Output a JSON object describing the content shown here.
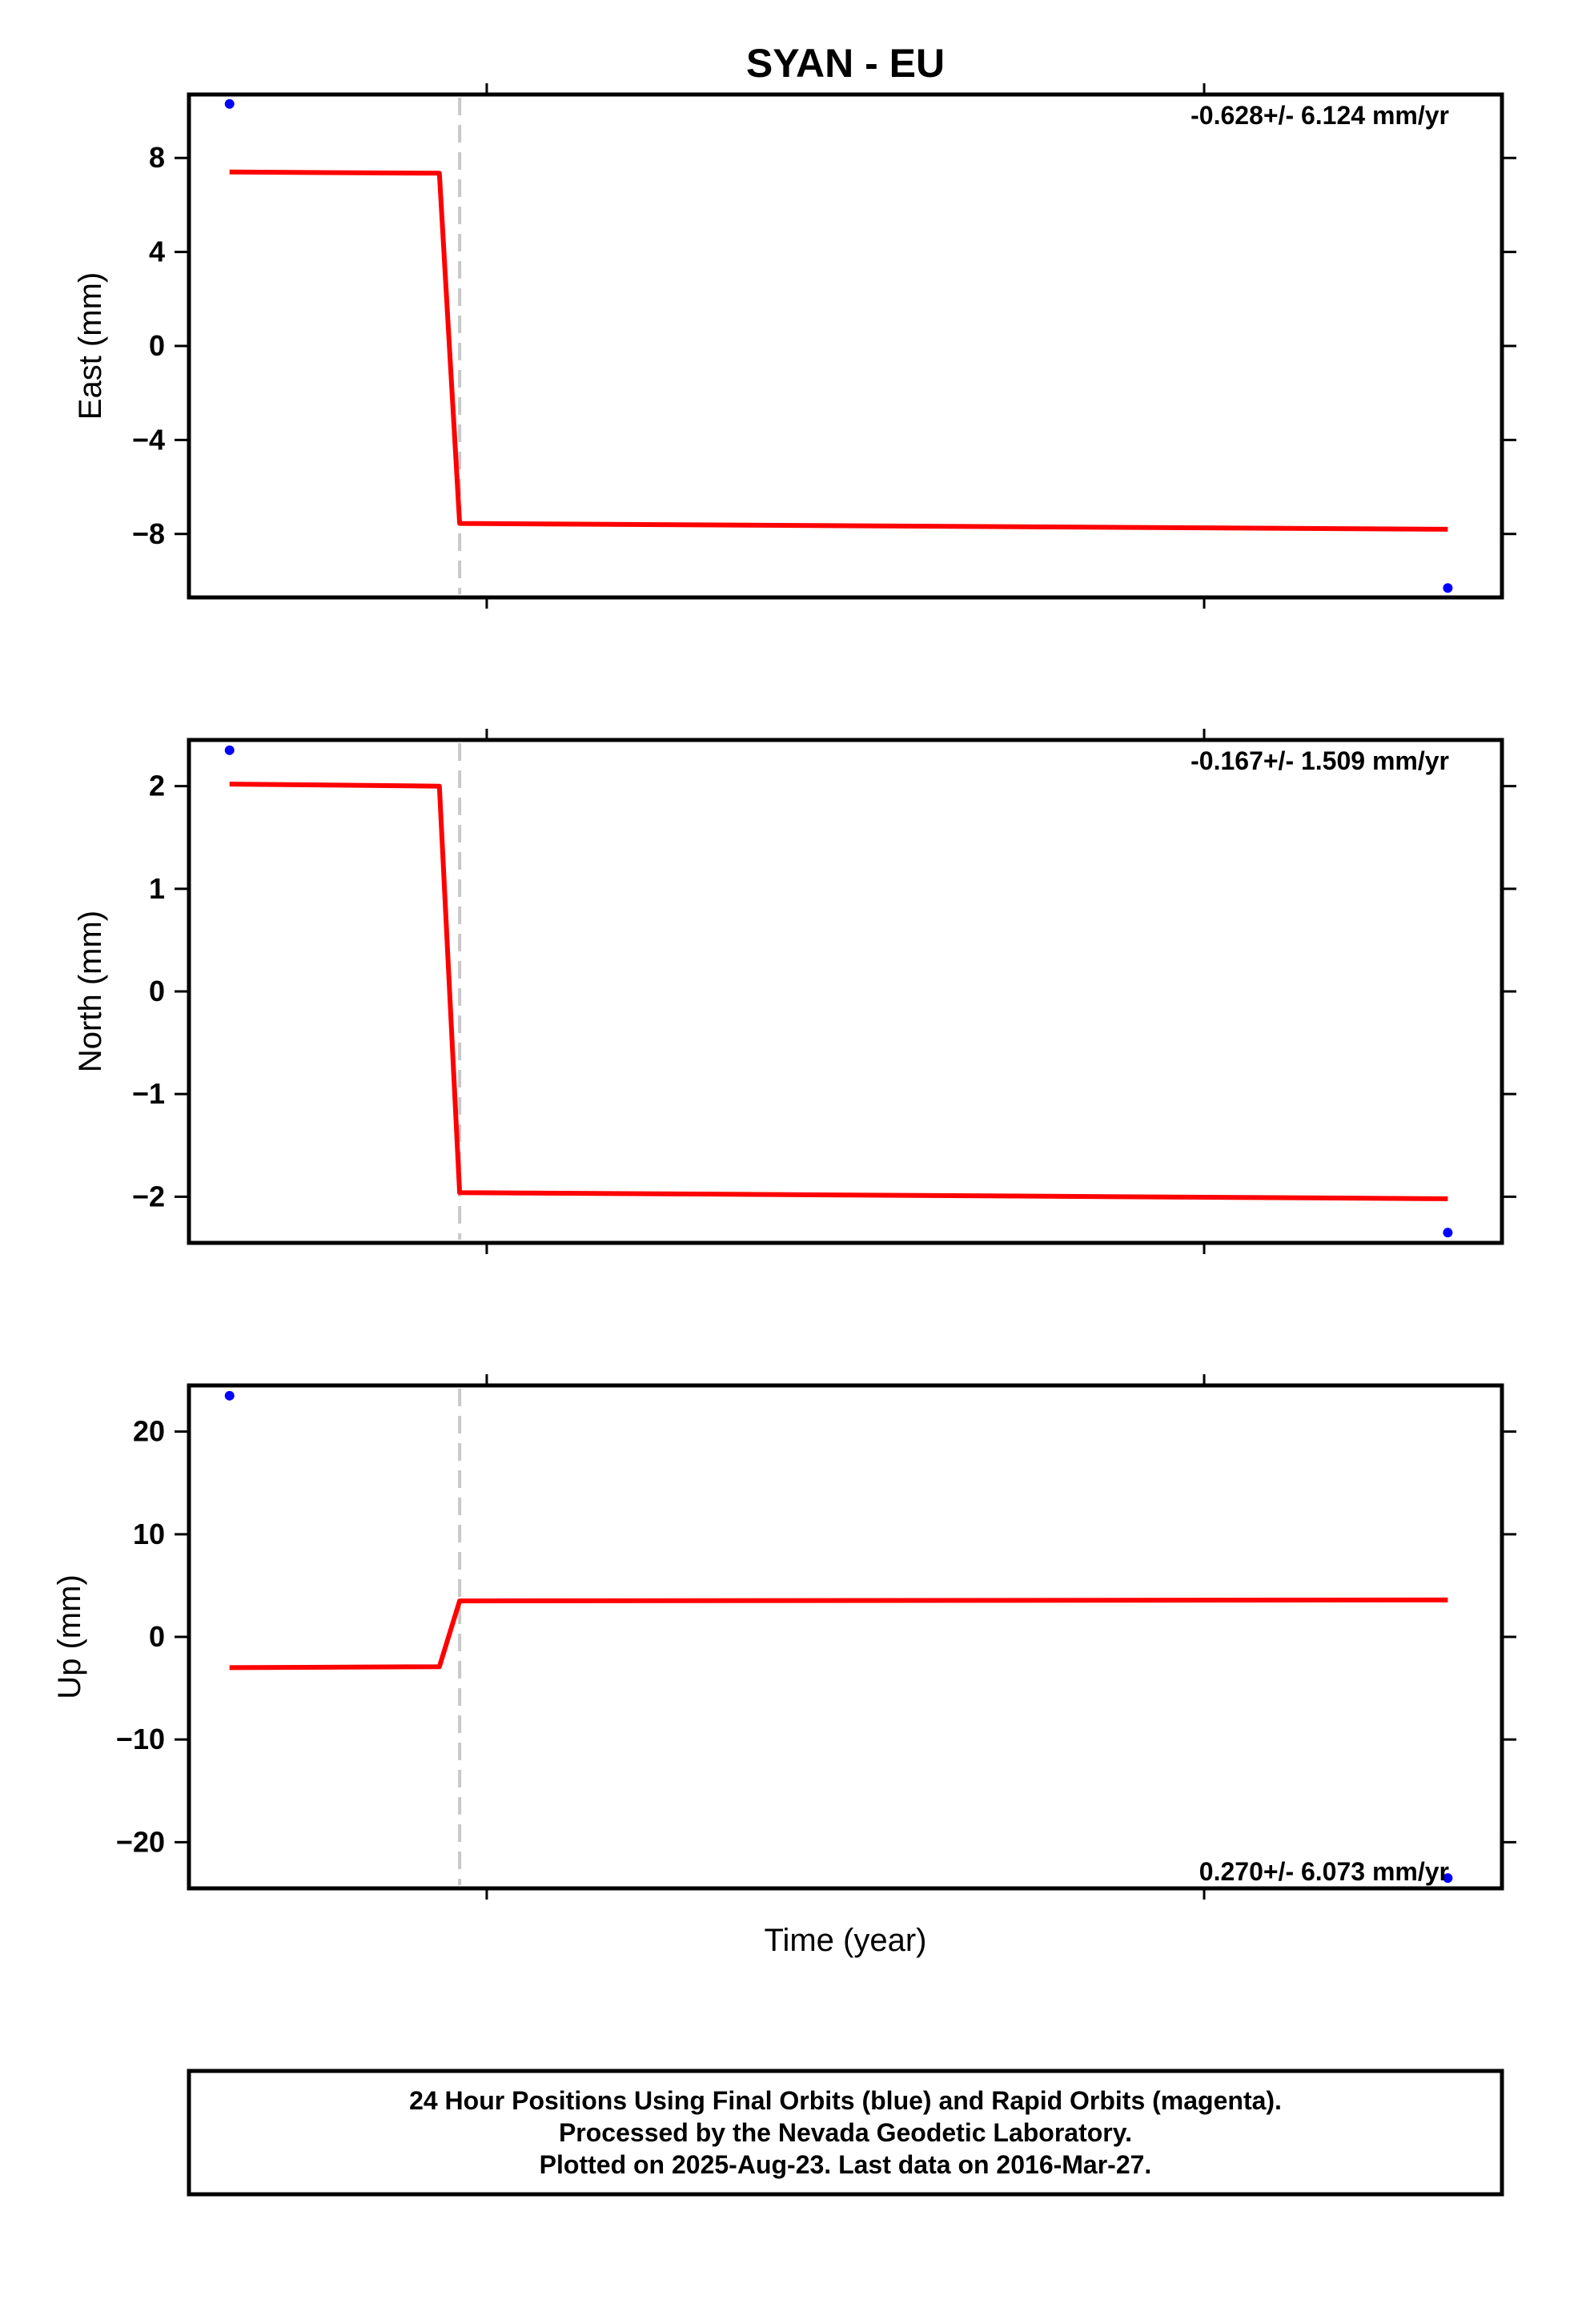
{
  "chart_data": [
    {
      "type": "line",
      "title": "SYAN - EU",
      "xlabel": "",
      "ylabel": "East (mm)",
      "ylim": [
        -10.7,
        10.7
      ],
      "yticks": [
        8,
        4,
        0,
        -4,
        -8
      ],
      "ytick_labels": [
        "8",
        "4",
        "0",
        "−4",
        "−8"
      ],
      "grid": false,
      "rate_annotation": "-0.628+/- 6.124 mm/yr",
      "series": [
        {
          "kind": "points",
          "color": "#0000ff",
          "x": [
            2015.34,
            2016.24
          ],
          "y": [
            10.3,
            -10.3
          ]
        },
        {
          "kind": "line",
          "color": "#ff0000",
          "x": [
            2015.34,
            2015.495,
            2015.51,
            2016.24
          ],
          "y": [
            7.4,
            7.35,
            -7.55,
            -7.8
          ]
        }
      ],
      "event_x": 2015.51
    },
    {
      "type": "line",
      "title": "",
      "xlabel": "",
      "ylabel": "North (mm)",
      "ylim": [
        -2.45,
        2.45
      ],
      "yticks": [
        2,
        1,
        0,
        -1,
        -2
      ],
      "ytick_labels": [
        "2",
        "1",
        "0",
        "−1",
        "−2"
      ],
      "grid": false,
      "rate_annotation": "-0.167+/- 1.509 mm/yr",
      "series": [
        {
          "kind": "points",
          "color": "#0000ff",
          "x": [
            2015.34,
            2016.24
          ],
          "y": [
            2.35,
            -2.35
          ]
        },
        {
          "kind": "line",
          "color": "#ff0000",
          "x": [
            2015.34,
            2015.495,
            2015.51,
            2016.24
          ],
          "y": [
            2.02,
            2.0,
            -1.96,
            -2.02
          ]
        }
      ],
      "event_x": 2015.51
    },
    {
      "type": "line",
      "title": "",
      "xlabel": "Time (year)",
      "ylabel": "Up (mm)",
      "ylim": [
        -24.5,
        24.5
      ],
      "yticks": [
        20,
        10,
        0,
        -10,
        -20
      ],
      "ytick_labels": [
        "20",
        "10",
        "0",
        "−10",
        "−20"
      ],
      "grid": false,
      "rate_annotation": "0.270+/- 6.073 mm/yr",
      "series": [
        {
          "kind": "points",
          "color": "#0000ff",
          "x": [
            2015.34,
            2016.24
          ],
          "y": [
            23.5,
            -23.5
          ]
        },
        {
          "kind": "line",
          "color": "#ff0000",
          "x": [
            2015.34,
            2015.495,
            2015.51,
            2016.24
          ],
          "y": [
            -3.0,
            -2.9,
            3.5,
            3.6
          ]
        }
      ],
      "event_x": 2015.51
    }
  ],
  "footer": {
    "line1": "24 Hour Positions Using Final Orbits (blue) and Rapid Orbits (magenta).",
    "line2": "Processed by the Nevada Geodetic Laboratory.",
    "line3": "Plotted on 2025-Aug-23. Last data on 2016-Mar-27."
  },
  "colors": {
    "final_orbit_points": "#0000ff",
    "model_line": "#ff0000",
    "event_marker": "#c8c8c8"
  }
}
